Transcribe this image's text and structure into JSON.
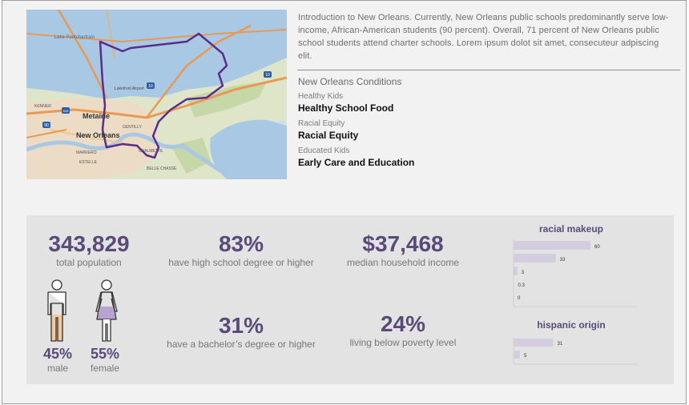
{
  "intro": {
    "text": "Introduction to New Orleans. Currently, New Orleans public schools predominantly serve low-income, African-American students (90 percent). Overall, 71 percent of New Orleans public school students attend charter schools. Lorem ipsum dolot sit amet, consecuteur adpiscing elit."
  },
  "map": {
    "labels": {
      "lake": "Lake Pontchartrain",
      "metairie": "Metairie",
      "new_orleans": "New Orleans",
      "kenner": "KENNER",
      "airport": "Lakefront Airport",
      "gentilly": "GENTILLY",
      "marrero": "MARRERO",
      "estelle": "ESTELLE",
      "belle_chasse": "BELLE CHASSE",
      "chalmette": "CHALMETTE"
    },
    "highway_shields": [
      "10",
      "610",
      "90",
      "10"
    ]
  },
  "conditions": {
    "title": "New Orleans Conditions",
    "items": [
      {
        "label": "Healthy Kids",
        "value": "Healthy School Food"
      },
      {
        "label": "Racial Equity",
        "value": "Racial Equity"
      },
      {
        "label": "Educated Kids",
        "value": "Early Care and Education"
      }
    ]
  },
  "stats": {
    "population": {
      "value": "343,829",
      "label": "total population"
    },
    "high_school": {
      "value": "83%",
      "label": "have high school degree or higher"
    },
    "income": {
      "value": "$37,468",
      "label": "median household income"
    },
    "bachelor": {
      "value": "31%",
      "label": "have a bachelor’s degree or higher"
    },
    "poverty": {
      "value": "24%",
      "label": "living below poverty level"
    },
    "male": {
      "value": "45%",
      "label": "male"
    },
    "female": {
      "value": "55%",
      "label": "female"
    }
  },
  "colors": {
    "accent": "#5a4a7a",
    "bar": "#d4cde0",
    "male_fill": "#f4c8a0",
    "female_fill": "#b8a2d0",
    "boundary": "#5a2d8c"
  },
  "chart_data": [
    {
      "type": "bar",
      "orientation": "horizontal",
      "title": "racial makeup",
      "values": [
        60,
        33,
        3,
        0.3,
        0
      ],
      "xlim": [
        0,
        100
      ]
    },
    {
      "type": "bar",
      "orientation": "horizontal",
      "title": "hispanic origin",
      "values": [
        31,
        5
      ],
      "xlim": [
        0,
        100
      ]
    }
  ]
}
